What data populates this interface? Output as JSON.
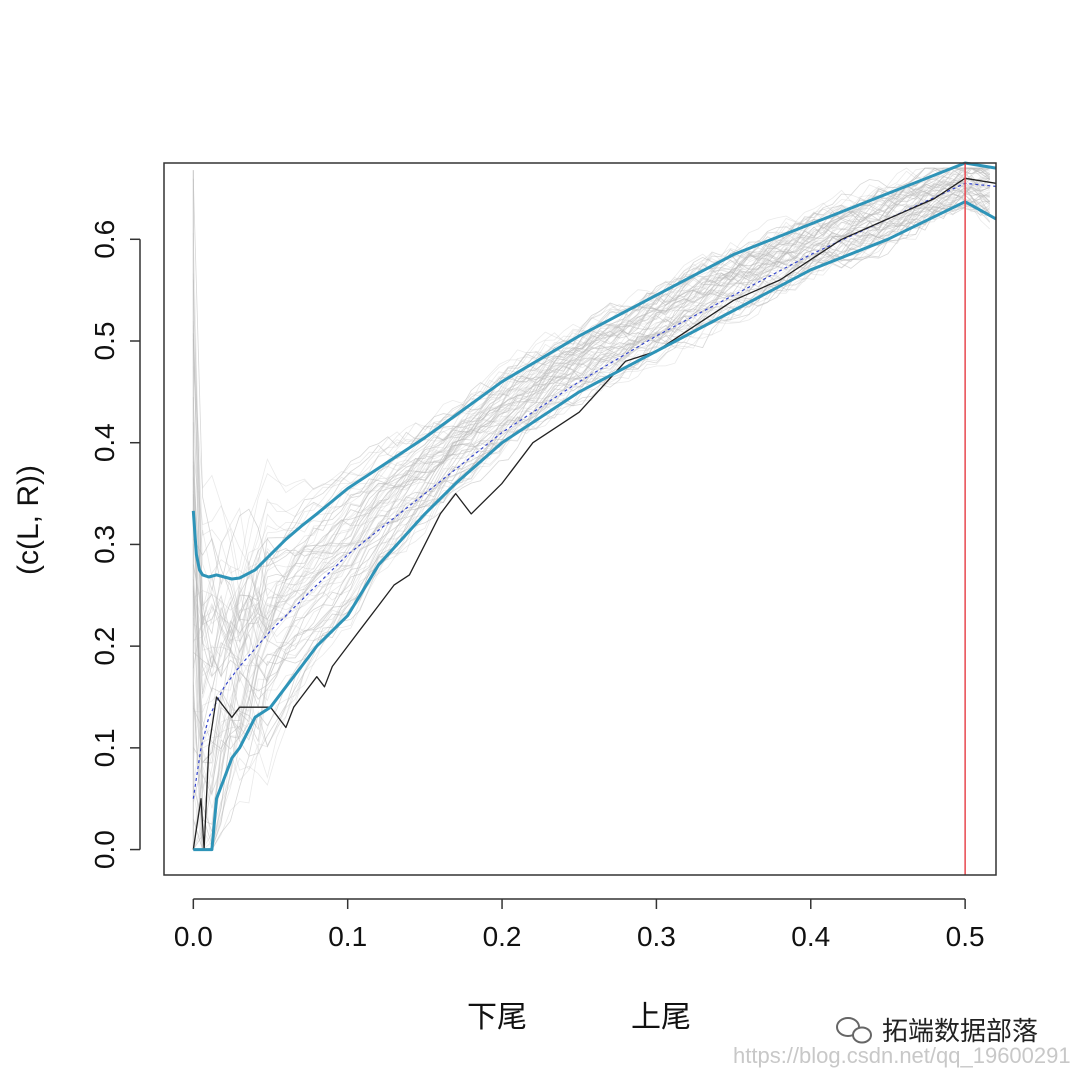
{
  "chart_data": {
    "type": "line",
    "title": "",
    "xlabel_lower": "下尾",
    "xlabel_upper": "上尾",
    "ylabel": "(c(L, R))",
    "xlim": [
      -0.019,
      0.52
    ],
    "ylim": [
      -0.025,
      0.675
    ],
    "xticks": [
      "0.0",
      "0.1",
      "0.2",
      "0.3",
      "0.4",
      "0.5"
    ],
    "xtick_values": [
      0.0,
      0.1,
      0.2,
      0.3,
      0.4,
      0.5
    ],
    "yticks": [
      "0.0",
      "0.1",
      "0.2",
      "0.3",
      "0.4",
      "0.5",
      "0.6"
    ],
    "ytick_values": [
      0.0,
      0.1,
      0.2,
      0.3,
      0.4,
      0.5,
      0.6
    ],
    "vline_x": 0.5,
    "colors": {
      "band": "#2e94b8",
      "mean": "#3344cc",
      "empirical": "#222222",
      "vline": "#e8474f",
      "simulations": "#b8b8b8"
    },
    "series": [
      {
        "role": "upper-band",
        "x": [
          0.0,
          0.002,
          0.004,
          0.006,
          0.01,
          0.015,
          0.02,
          0.025,
          0.03,
          0.04,
          0.05,
          0.06,
          0.07,
          0.08,
          0.1,
          0.12,
          0.15,
          0.2,
          0.25,
          0.3,
          0.35,
          0.4,
          0.45,
          0.5,
          0.52
        ],
        "values": [
          0.333,
          0.29,
          0.275,
          0.27,
          0.268,
          0.27,
          0.268,
          0.266,
          0.267,
          0.275,
          0.29,
          0.305,
          0.318,
          0.33,
          0.355,
          0.375,
          0.405,
          0.46,
          0.505,
          0.545,
          0.585,
          0.615,
          0.645,
          0.675,
          0.67
        ]
      },
      {
        "role": "lower-band",
        "x": [
          0.0,
          0.005,
          0.01,
          0.012,
          0.015,
          0.02,
          0.025,
          0.03,
          0.04,
          0.05,
          0.06,
          0.07,
          0.08,
          0.1,
          0.12,
          0.15,
          0.17,
          0.2,
          0.25,
          0.3,
          0.35,
          0.4,
          0.45,
          0.5,
          0.52
        ],
        "values": [
          0.0,
          0.0,
          0.0,
          0.0,
          0.05,
          0.07,
          0.09,
          0.1,
          0.13,
          0.14,
          0.16,
          0.18,
          0.2,
          0.23,
          0.28,
          0.33,
          0.36,
          0.4,
          0.45,
          0.49,
          0.53,
          0.57,
          0.6,
          0.637,
          0.62
        ]
      },
      {
        "role": "mean",
        "x": [
          0.0,
          0.005,
          0.01,
          0.02,
          0.03,
          0.05,
          0.08,
          0.1,
          0.15,
          0.2,
          0.25,
          0.3,
          0.35,
          0.4,
          0.45,
          0.5,
          0.52
        ],
        "values": [
          0.05,
          0.1,
          0.13,
          0.16,
          0.18,
          0.215,
          0.26,
          0.29,
          0.35,
          0.41,
          0.46,
          0.505,
          0.545,
          0.585,
          0.62,
          0.655,
          0.652
        ]
      },
      {
        "role": "empirical",
        "x": [
          0.0,
          0.005,
          0.007,
          0.01,
          0.012,
          0.015,
          0.02,
          0.025,
          0.03,
          0.035,
          0.04,
          0.05,
          0.06,
          0.065,
          0.07,
          0.08,
          0.085,
          0.09,
          0.1,
          0.11,
          0.12,
          0.13,
          0.14,
          0.15,
          0.16,
          0.17,
          0.18,
          0.2,
          0.22,
          0.25,
          0.28,
          0.3,
          0.32,
          0.35,
          0.38,
          0.4,
          0.42,
          0.45,
          0.48,
          0.5,
          0.52
        ],
        "values": [
          0.0,
          0.05,
          0.0,
          0.1,
          0.12,
          0.15,
          0.14,
          0.13,
          0.14,
          0.14,
          0.14,
          0.14,
          0.12,
          0.14,
          0.15,
          0.17,
          0.16,
          0.18,
          0.2,
          0.22,
          0.24,
          0.26,
          0.27,
          0.3,
          0.33,
          0.35,
          0.33,
          0.36,
          0.4,
          0.43,
          0.48,
          0.49,
          0.51,
          0.54,
          0.56,
          0.58,
          0.6,
          0.62,
          0.64,
          0.66,
          0.655
        ]
      }
    ]
  },
  "watermark": {
    "text": "拓端数据部落",
    "url": "https://blog.csdn.net/qq_19600291"
  }
}
